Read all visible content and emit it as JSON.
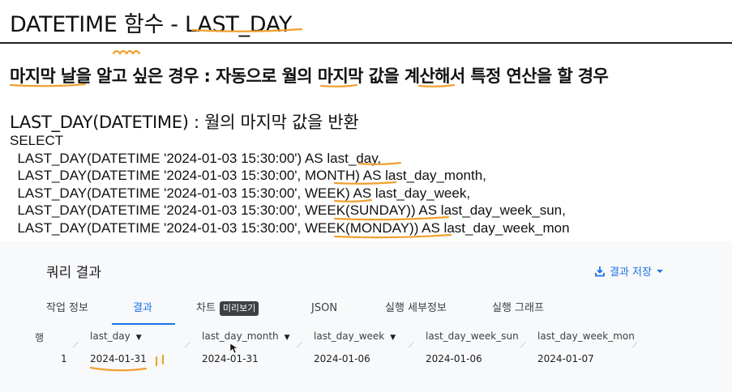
{
  "slide": {
    "title": "DATETIME 함수 - LAST_DAY",
    "subtitle": "마지막 날을 알고 싶은 경우 : 자동으로 월의 마지막 값을 계산해서 특정 연산을 할 경우",
    "description": "LAST_DAY(DATETIME) : 월의 마지막 값을 반환",
    "code": [
      "SELECT",
      "  LAST_DAY(DATETIME '2024-01-03 15:30:00') AS last_day,",
      "  LAST_DAY(DATETIME '2024-01-03 15:30:00', MONTH) AS last_day_month,",
      "  LAST_DAY(DATETIME '2024-01-03 15:30:00', WEEK) AS last_day_week,",
      "  LAST_DAY(DATETIME '2024-01-03 15:30:00', WEEK(SUNDAY)) AS last_day_week_sun,",
      "  LAST_DAY(DATETIME '2024-01-03 15:30:00', WEEK(MONDAY)) AS last_day_week_mon"
    ]
  },
  "results": {
    "title": "쿼리 결과",
    "save_label": "결과 저장",
    "tabs": [
      "작업 정보",
      "결과",
      "차트",
      "JSON",
      "실행 세부정보",
      "실행 그래프"
    ],
    "preview_badge": "미리보기",
    "active_tab": "결과",
    "columns": [
      "행",
      "last_day",
      "last_day_month",
      "last_day_week",
      "last_day_week_sun",
      "last_day_week_mon"
    ],
    "rows": [
      [
        "1",
        "2024-01-31",
        "2024-01-31",
        "2024-01-06",
        "2024-01-06",
        "2024-01-07"
      ]
    ]
  },
  "colors": {
    "accent": "#1a73e8",
    "annotation": "#f0a030",
    "panel_bg": "#f8f9fa"
  }
}
